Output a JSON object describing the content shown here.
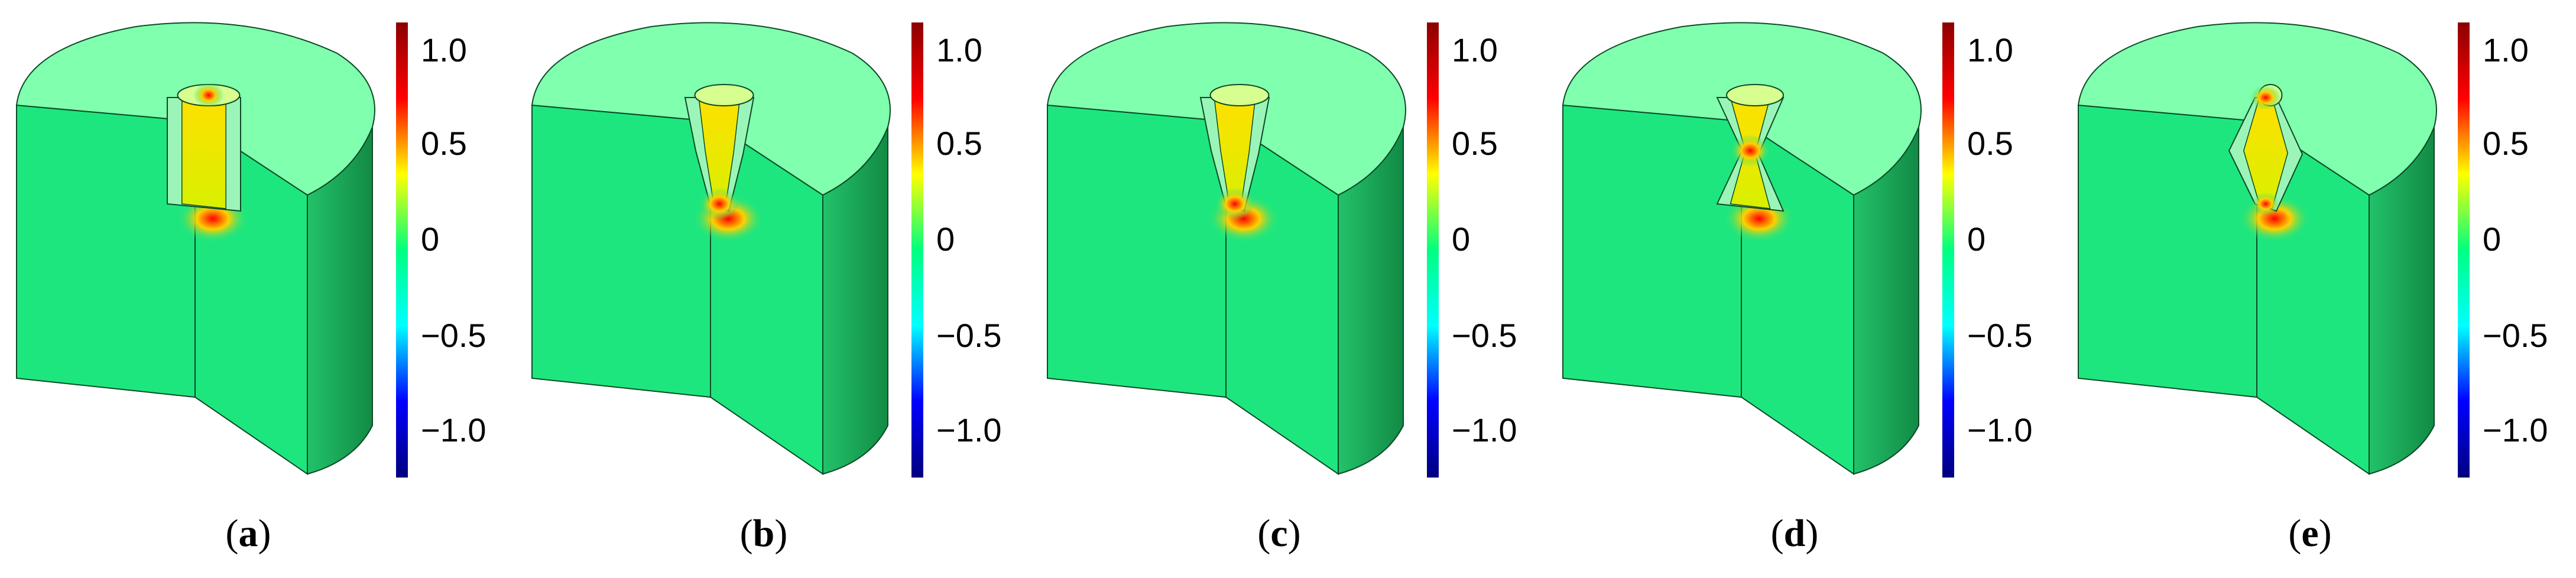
{
  "colorbar": {
    "tick_labels": [
      "1.0",
      "0.5",
      "0",
      "−0.5",
      "−1.0"
    ],
    "colors": [
      "#8b0000",
      "#ff0000",
      "#ffff00",
      "#00ff80",
      "#00ffff",
      "#0000ff",
      "#00007f"
    ]
  },
  "colors": {
    "body": "#1ee67e",
    "top": "#80ffae",
    "side": "#149a50",
    "edge": "#0b4a25"
  },
  "panels": [
    {
      "id": "a",
      "caption_open": "(",
      "caption_letter": "a",
      "caption_close": ")",
      "hole": "cylinder"
    },
    {
      "id": "b",
      "caption_open": "(",
      "caption_letter": "b",
      "caption_close": ")",
      "hole": "cone-narrow-bottom"
    },
    {
      "id": "c",
      "caption_open": "(",
      "caption_letter": "c",
      "caption_close": ")",
      "hole": "cone-narrow-bottom"
    },
    {
      "id": "d",
      "caption_open": "(",
      "caption_letter": "d",
      "caption_close": ")",
      "hole": "hourglass"
    },
    {
      "id": "e",
      "caption_open": "(",
      "caption_letter": "e",
      "caption_close": ")",
      "hole": "barrel"
    }
  ]
}
